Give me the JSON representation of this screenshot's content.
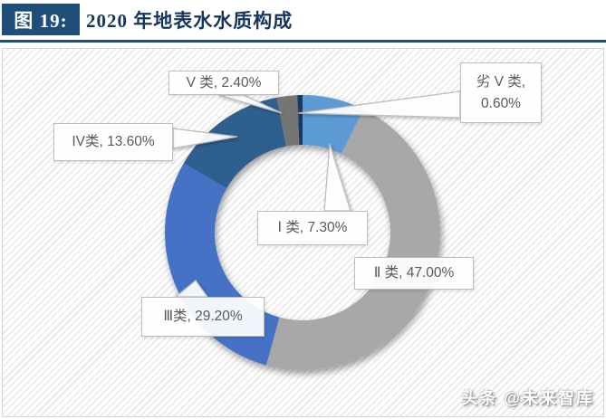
{
  "header": {
    "figure_label": "图 19:",
    "title": "2020 年地表水水质构成"
  },
  "watermark": "头条 @未来智库",
  "chart_data": {
    "type": "pie",
    "subtype": "donut",
    "title": "2020 年地表水水质构成",
    "categories": [
      "Ⅰ类",
      "Ⅱ类",
      "Ⅲ类",
      "IV类",
      "V类",
      "劣V类"
    ],
    "values": [
      7.3,
      47.0,
      29.2,
      13.6,
      2.4,
      0.6
    ],
    "unit": "percent",
    "colors": [
      "#5B9BD5",
      "#A8A8A8",
      "#4472C4",
      "#2E5F8E",
      "#757575",
      "#1F3864"
    ],
    "labels": [
      "Ⅰ 类, 7.30%",
      "Ⅱ 类, 47.00%",
      "Ⅲ类, 29.20%",
      "IV类, 13.60%",
      "V 类, 2.40%",
      "劣 V 类, 0.60%"
    ],
    "label_lines": [
      [
        "Ⅰ 类, 7.30%"
      ],
      [
        "Ⅱ 类, 47.00%"
      ],
      [
        "Ⅲ类, 29.20%"
      ],
      [
        "IV类, 13.60%"
      ],
      [
        "V 类, 2.40%"
      ],
      [
        "劣 V 类,",
        "0.60%"
      ]
    ],
    "start_angle_deg": 0,
    "direction": "clockwise",
    "hole_ratio": 0.64,
    "legend": "none",
    "data_labels": "callout-boxes"
  }
}
